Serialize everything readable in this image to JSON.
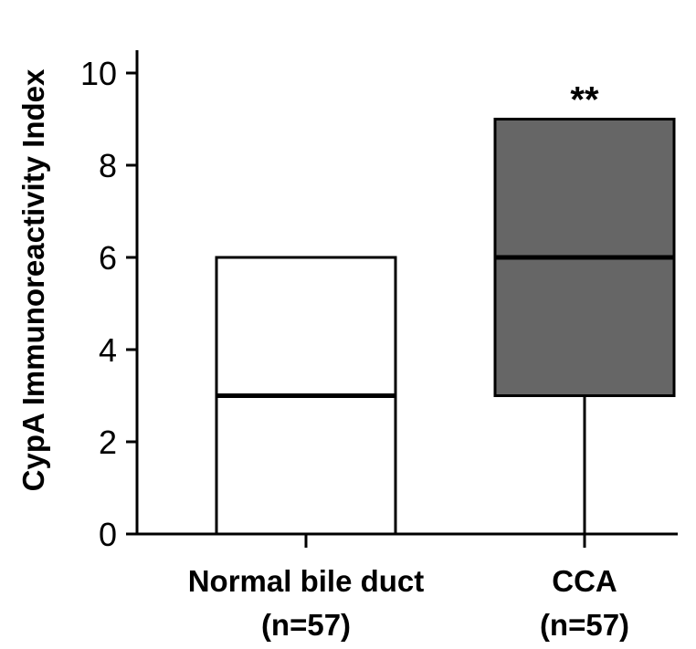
{
  "chart_data": {
    "type": "box",
    "ylabel": "CypA Immunoreactivity Index",
    "ylim": [
      0,
      10
    ],
    "yticks": [
      "0",
      "2",
      "4",
      "6",
      "8",
      "10"
    ],
    "grid": false,
    "groups": [
      {
        "label": "Normal bile duct",
        "n_label": "(n=57)",
        "min": 0,
        "q1": 0,
        "median": 3,
        "q3": 6,
        "max": 6,
        "fill": "#ffffff",
        "annotation": ""
      },
      {
        "label": "CCA",
        "n_label": "(n=57)",
        "min": 0,
        "q1": 3,
        "median": 6,
        "q3": 9,
        "max": 9,
        "fill": "#666666",
        "annotation": "**"
      }
    ]
  }
}
